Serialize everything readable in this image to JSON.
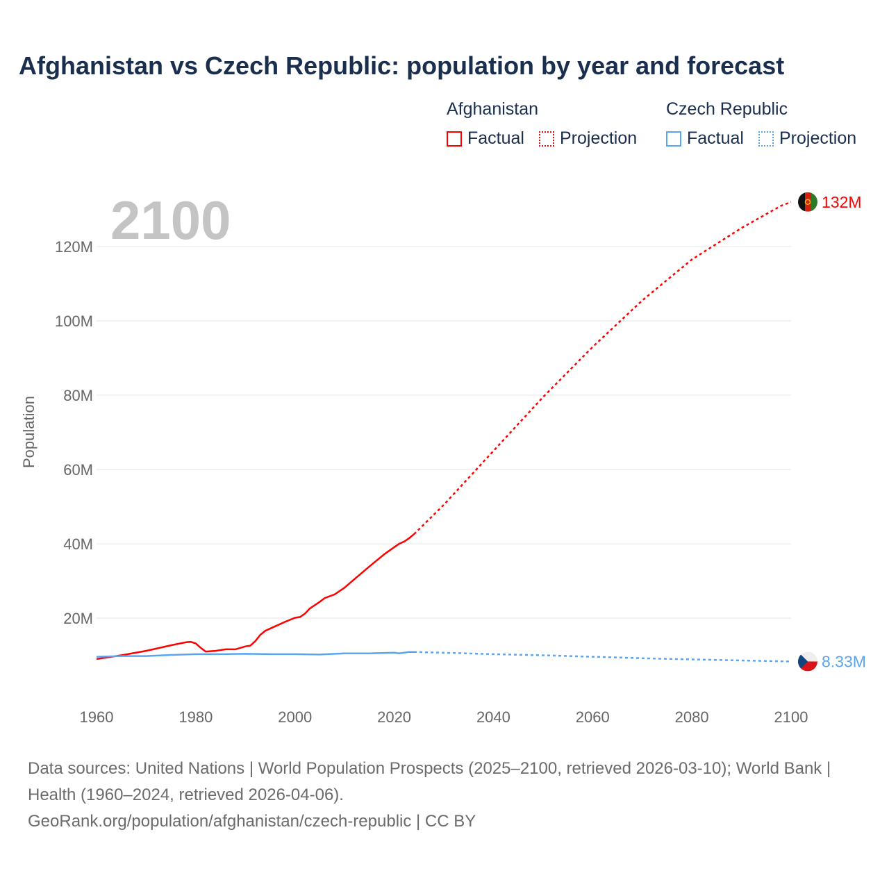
{
  "title": "Afghanistan vs Czech Republic: population by year and forecast",
  "legend": {
    "groups": [
      {
        "name": "Afghanistan",
        "color": "#ff0000",
        "factual": "Factual",
        "projection": "Projection"
      },
      {
        "name": "Czech Republic",
        "color": "#5aa5f0",
        "factual": "Factual",
        "projection": "Projection"
      }
    ]
  },
  "year_display": "2100",
  "footer": {
    "sources": "Data sources: United Nations | World Population Prospects (2025–2100, retrieved 2026-03-10); World Bank | Health (1960–2024, retrieved 2026-04-06).",
    "url": "GeoRank.org/population/afghanistan/czech-republic | CC BY"
  },
  "chart_data": {
    "type": "line",
    "title": "Afghanistan vs Czech Republic: population by year and forecast",
    "xlabel": "",
    "ylabel": "Population",
    "xlim": [
      1960,
      2100
    ],
    "ylim": [
      0,
      125
    ],
    "x_ticks": [
      "1960",
      "1980",
      "2000",
      "2020",
      "2040",
      "2060",
      "2080",
      "2100"
    ],
    "y_ticks": [
      "20M",
      "40M",
      "60M",
      "80M",
      "100M",
      "120M"
    ],
    "y_tick_values": [
      20,
      40,
      60,
      80,
      100,
      120
    ],
    "grid": true,
    "units": "millions",
    "series": [
      {
        "name": "Afghanistan",
        "color": "#ff0000",
        "end_label": "132M",
        "factual": [
          [
            1960,
            9.0
          ],
          [
            1965,
            10.0
          ],
          [
            1970,
            11.2
          ],
          [
            1975,
            12.7
          ],
          [
            1978,
            13.5
          ],
          [
            1979,
            13.6
          ],
          [
            1980,
            13.2
          ],
          [
            1981,
            12.0
          ],
          [
            1982,
            11.0
          ],
          [
            1984,
            11.2
          ],
          [
            1986,
            11.6
          ],
          [
            1988,
            11.6
          ],
          [
            1990,
            12.4
          ],
          [
            1991,
            12.6
          ],
          [
            1992,
            13.8
          ],
          [
            1993,
            15.5
          ],
          [
            1994,
            16.6
          ],
          [
            1996,
            17.8
          ],
          [
            1998,
            19.0
          ],
          [
            2000,
            20.1
          ],
          [
            2001,
            20.3
          ],
          [
            2002,
            21.2
          ],
          [
            2003,
            22.6
          ],
          [
            2005,
            24.4
          ],
          [
            2006,
            25.4
          ],
          [
            2008,
            26.4
          ],
          [
            2010,
            28.2
          ],
          [
            2012,
            30.5
          ],
          [
            2015,
            33.9
          ],
          [
            2018,
            37.2
          ],
          [
            2020,
            39.1
          ],
          [
            2021,
            40.0
          ],
          [
            2022,
            40.6
          ],
          [
            2023,
            41.5
          ],
          [
            2024,
            42.6
          ]
        ],
        "projection": [
          [
            2024,
            42.6
          ],
          [
            2030,
            50.5
          ],
          [
            2040,
            65.0
          ],
          [
            2050,
            79.5
          ],
          [
            2060,
            93.0
          ],
          [
            2070,
            105.5
          ],
          [
            2080,
            116.5
          ],
          [
            2090,
            125.0
          ],
          [
            2098,
            131.0
          ],
          [
            2100,
            132.0
          ]
        ]
      },
      {
        "name": "Czech Republic",
        "color": "#5aa5f0",
        "end_label": "8.33M",
        "factual": [
          [
            1960,
            9.6
          ],
          [
            1965,
            9.8
          ],
          [
            1970,
            9.8
          ],
          [
            1975,
            10.1
          ],
          [
            1980,
            10.3
          ],
          [
            1985,
            10.3
          ],
          [
            1990,
            10.4
          ],
          [
            1995,
            10.3
          ],
          [
            2000,
            10.3
          ],
          [
            2005,
            10.2
          ],
          [
            2010,
            10.5
          ],
          [
            2015,
            10.5
          ],
          [
            2020,
            10.7
          ],
          [
            2021,
            10.5
          ],
          [
            2022,
            10.7
          ],
          [
            2023,
            10.9
          ],
          [
            2024,
            10.9
          ]
        ],
        "projection": [
          [
            2024,
            10.9
          ],
          [
            2030,
            10.7
          ],
          [
            2040,
            10.3
          ],
          [
            2050,
            10.0
          ],
          [
            2060,
            9.6
          ],
          [
            2070,
            9.2
          ],
          [
            2080,
            8.9
          ],
          [
            2090,
            8.6
          ],
          [
            2100,
            8.33
          ]
        ]
      }
    ]
  }
}
